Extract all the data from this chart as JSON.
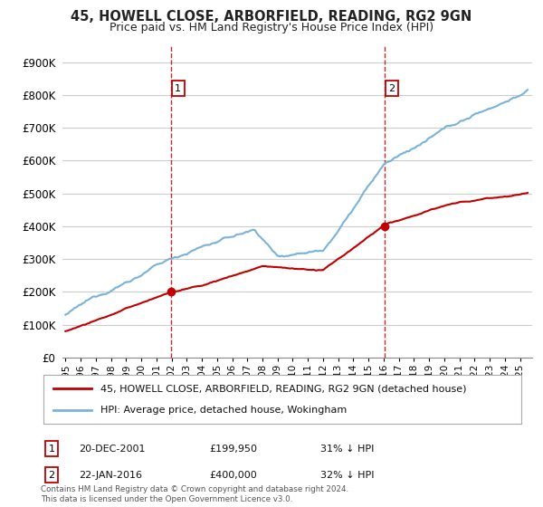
{
  "title": "45, HOWELL CLOSE, ARBORFIELD, READING, RG2 9GN",
  "subtitle": "Price paid vs. HM Land Registry's House Price Index (HPI)",
  "ylabel_ticks": [
    "£0",
    "£100K",
    "£200K",
    "£300K",
    "£400K",
    "£500K",
    "£600K",
    "£700K",
    "£800K",
    "£900K"
  ],
  "ytick_values": [
    0,
    100000,
    200000,
    300000,
    400000,
    500000,
    600000,
    700000,
    800000,
    900000
  ],
  "xlim_start": 1994.8,
  "xlim_end": 2025.8,
  "ylim": [
    0,
    950000
  ],
  "hpi_color": "#7ab3d9",
  "price_color": "#c00000",
  "vline_color": "#c00000",
  "grid_color": "#cccccc",
  "purchase1_x": 2001.97,
  "purchase1_y": 199950,
  "purchase1_label": "1",
  "purchase2_x": 2016.06,
  "purchase2_y": 400000,
  "purchase2_label": "2",
  "legend_line1": "45, HOWELL CLOSE, ARBORFIELD, READING, RG2 9GN (detached house)",
  "legend_line2": "HPI: Average price, detached house, Wokingham",
  "footnote": "Contains HM Land Registry data © Crown copyright and database right 2024.\nThis data is licensed under the Open Government Licence v3.0.",
  "background_color": "#ffffff"
}
